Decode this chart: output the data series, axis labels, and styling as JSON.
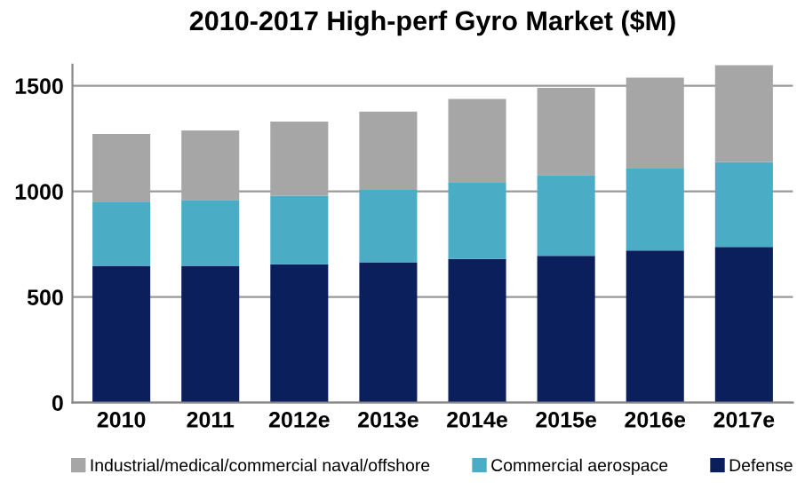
{
  "chart_data": {
    "type": "bar",
    "title": "2010-2017 High-perf Gyro Market ($M)",
    "categories": [
      "2010",
      "2011",
      "2012e",
      "2013e",
      "2014e",
      "2015e",
      "2016e",
      "2017e"
    ],
    "stacked": true,
    "series": [
      {
        "name": "Defense",
        "color": "#0b1f5c",
        "values": [
          645,
          645,
          655,
          664,
          680,
          695,
          720,
          737
        ]
      },
      {
        "name": "Commercial aerospace",
        "color": "#4bacc6",
        "values": [
          303,
          314,
          324,
          343,
          360,
          382,
          388,
          402
        ]
      },
      {
        "name": "Industrial/medical/commercial naval/offshore",
        "color": "#a6a6a6",
        "values": [
          323,
          329,
          351,
          371,
          397,
          413,
          430,
          458
        ]
      }
    ],
    "ylim": [
      0,
      1600
    ],
    "yticks": [
      0,
      500,
      1000,
      1500
    ],
    "grid": "y",
    "legend": "bottom"
  }
}
